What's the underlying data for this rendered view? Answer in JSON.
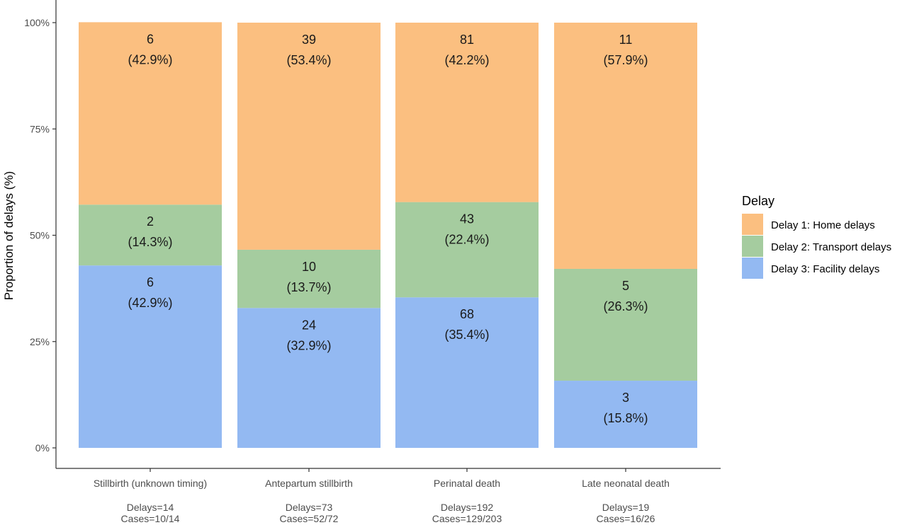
{
  "chart_data": {
    "type": "bar",
    "stacked": true,
    "normalized": true,
    "ylabel": "Proportion of delays (%)",
    "ylim": [
      0,
      100
    ],
    "yticks": [
      "0%",
      "25%",
      "50%",
      "75%",
      "100%"
    ],
    "grid": false,
    "legend": {
      "title": "Delay",
      "placement": "right"
    },
    "categories": [
      "Stillbirth (unknown timing)",
      "Antepartum stillbirth",
      "Perinatal death",
      "Late neonatal death"
    ],
    "category_notes": [
      [
        "Delays=14",
        "Cases=10/14"
      ],
      [
        "Delays=73",
        "Cases=52/72"
      ],
      [
        "Delays=192",
        "Cases=129/203"
      ],
      [
        "Delays=19",
        "Cases=16/26"
      ]
    ],
    "series": [
      {
        "name": "Delay 3: Facility delays",
        "color": "#93b9f2",
        "counts": [
          6,
          24,
          68,
          3
        ],
        "values": [
          42.9,
          32.9,
          35.4,
          15.8
        ],
        "labels": [
          "(42.9%)",
          "(32.9%)",
          "(35.4%)",
          "(15.8%)"
        ]
      },
      {
        "name": "Delay 2: Transport delays",
        "color": "#a5cc9f",
        "counts": [
          2,
          10,
          43,
          5
        ],
        "values": [
          14.3,
          13.7,
          22.4,
          26.3
        ],
        "labels": [
          "(14.3%)",
          "(13.7%)",
          "(22.4%)",
          "(26.3%)"
        ]
      },
      {
        "name": "Delay 1: Home delays",
        "color": "#fbbf80",
        "counts": [
          6,
          39,
          81,
          11
        ],
        "values": [
          42.9,
          53.4,
          42.2,
          57.9
        ],
        "labels": [
          "(42.9%)",
          "(53.4%)",
          "(42.2%)",
          "(57.9%)"
        ]
      }
    ],
    "legend_order": [
      2,
      1,
      0
    ]
  }
}
